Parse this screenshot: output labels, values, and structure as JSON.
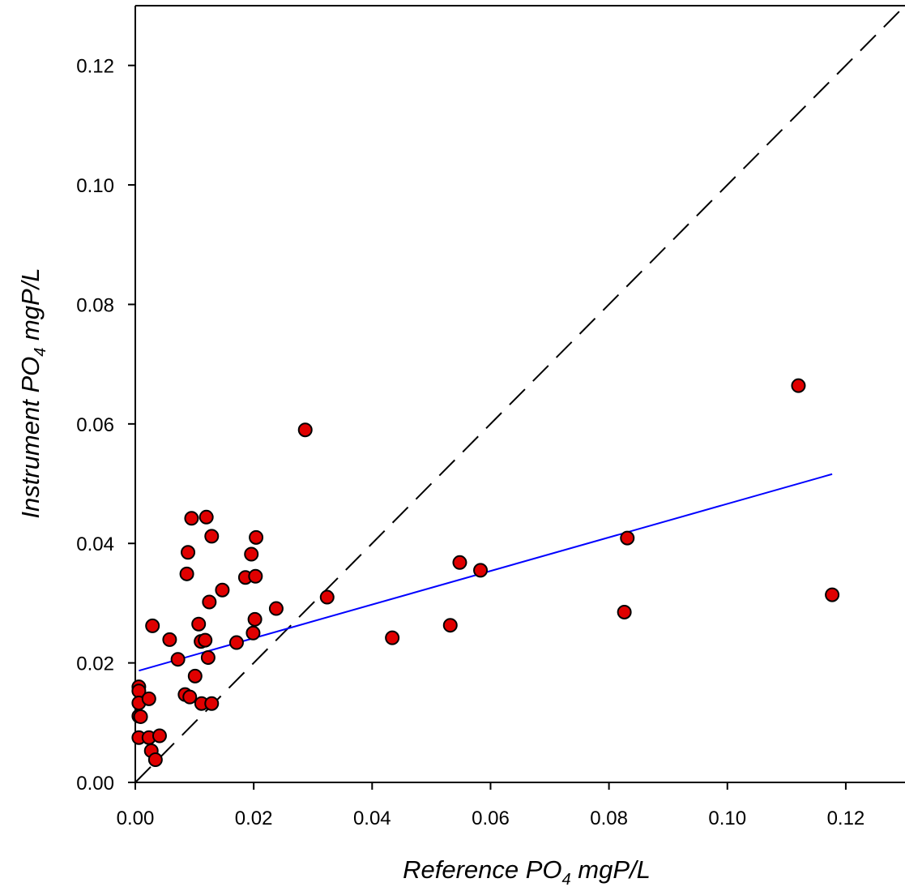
{
  "chart_data": {
    "type": "scatter",
    "xlabel": {
      "pre": "Reference PO",
      "sub": "4",
      "post": " mgP/L"
    },
    "ylabel": {
      "pre": "Instrument PO",
      "sub": "4",
      "post": " mgP/L"
    },
    "xlim": [
      0,
      0.13
    ],
    "ylim": [
      0,
      0.13
    ],
    "xticks": [
      0.0,
      0.02,
      0.04,
      0.06,
      0.08,
      0.1,
      0.12
    ],
    "yticks": [
      0.0,
      0.02,
      0.04,
      0.06,
      0.08,
      0.1,
      0.12
    ],
    "xtick_labels": [
      "0.00",
      "0.02",
      "0.04",
      "0.06",
      "0.08",
      "0.10",
      "0.12"
    ],
    "ytick_labels": [
      "0.00",
      "0.02",
      "0.04",
      "0.06",
      "0.08",
      "0.10",
      "0.12"
    ],
    "grid": false,
    "points": [
      {
        "x": 0.0006,
        "y": 0.016
      },
      {
        "x": 0.0006,
        "y": 0.0153
      },
      {
        "x": 0.0006,
        "y": 0.0133
      },
      {
        "x": 0.0006,
        "y": 0.0111
      },
      {
        "x": 0.0006,
        "y": 0.0075
      },
      {
        "x": 0.0009,
        "y": 0.011
      },
      {
        "x": 0.0023,
        "y": 0.0075
      },
      {
        "x": 0.0023,
        "y": 0.014
      },
      {
        "x": 0.0027,
        "y": 0.0053
      },
      {
        "x": 0.0029,
        "y": 0.0262
      },
      {
        "x": 0.0034,
        "y": 0.0038
      },
      {
        "x": 0.0041,
        "y": 0.0078
      },
      {
        "x": 0.0058,
        "y": 0.0239
      },
      {
        "x": 0.0072,
        "y": 0.0206
      },
      {
        "x": 0.0084,
        "y": 0.0147
      },
      {
        "x": 0.0087,
        "y": 0.0349
      },
      {
        "x": 0.0089,
        "y": 0.0385
      },
      {
        "x": 0.0092,
        "y": 0.0143
      },
      {
        "x": 0.0095,
        "y": 0.0442
      },
      {
        "x": 0.0101,
        "y": 0.0178
      },
      {
        "x": 0.0107,
        "y": 0.0265
      },
      {
        "x": 0.0111,
        "y": 0.0236
      },
      {
        "x": 0.0112,
        "y": 0.0132
      },
      {
        "x": 0.0118,
        "y": 0.0238
      },
      {
        "x": 0.012,
        "y": 0.0444
      },
      {
        "x": 0.0123,
        "y": 0.0209
      },
      {
        "x": 0.0125,
        "y": 0.0302
      },
      {
        "x": 0.0129,
        "y": 0.0412
      },
      {
        "x": 0.0129,
        "y": 0.0132
      },
      {
        "x": 0.0147,
        "y": 0.0322
      },
      {
        "x": 0.0171,
        "y": 0.0234
      },
      {
        "x": 0.0186,
        "y": 0.0343
      },
      {
        "x": 0.0196,
        "y": 0.0382
      },
      {
        "x": 0.0199,
        "y": 0.025
      },
      {
        "x": 0.0202,
        "y": 0.0273
      },
      {
        "x": 0.0203,
        "y": 0.0345
      },
      {
        "x": 0.0204,
        "y": 0.041
      },
      {
        "x": 0.0238,
        "y": 0.0291
      },
      {
        "x": 0.0287,
        "y": 0.059
      },
      {
        "x": 0.0324,
        "y": 0.031
      },
      {
        "x": 0.0434,
        "y": 0.0242
      },
      {
        "x": 0.0532,
        "y": 0.0263
      },
      {
        "x": 0.0548,
        "y": 0.0368
      },
      {
        "x": 0.0583,
        "y": 0.0355
      },
      {
        "x": 0.0826,
        "y": 0.0285
      },
      {
        "x": 0.0831,
        "y": 0.0409
      },
      {
        "x": 0.112,
        "y": 0.0664
      },
      {
        "x": 0.1177,
        "y": 0.0314
      }
    ],
    "point_color": "#e00000",
    "point_edge_color": "#000000",
    "regression_line": {
      "x": [
        0.0006,
        0.1177
      ],
      "y": [
        0.0187,
        0.0516
      ],
      "color": "#0000ff"
    },
    "identity_line": {
      "x": [
        0.0,
        0.13
      ],
      "y": [
        0.0,
        0.13
      ],
      "style": "dashed",
      "color": "#000000"
    }
  }
}
